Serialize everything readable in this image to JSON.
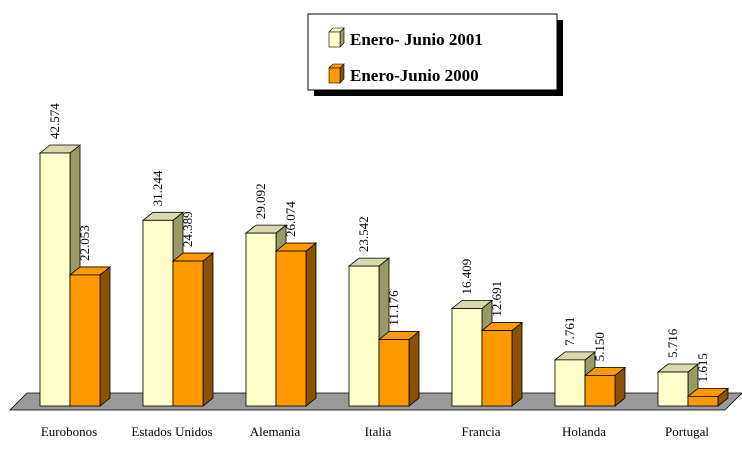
{
  "chart_data": {
    "type": "bar3d",
    "categories": [
      "Eurobonos",
      "Estados Unidos",
      "Alemania",
      "Italia",
      "Francia",
      "Holanda",
      "Portugal"
    ],
    "series": [
      {
        "name": "Enero- Junio 2001",
        "color": "#ffffcc",
        "values": [
          42.574,
          31.244,
          29.092,
          23.542,
          16.409,
          7.761,
          5.716
        ],
        "value_labels": [
          "42.574",
          "31.244",
          "29.092",
          "23.542",
          "16.409",
          "7.761",
          "5.716"
        ]
      },
      {
        "name": "Enero-Junio 2000",
        "color": "#ff9900",
        "values": [
          22.053,
          24.389,
          26.074,
          11.176,
          12.691,
          5.15,
          1.615
        ],
        "value_labels": [
          "22.053",
          "24.389",
          "26.074",
          "11.176",
          "12.691",
          "5.150",
          "1.615"
        ]
      }
    ],
    "legend": "top-right"
  }
}
